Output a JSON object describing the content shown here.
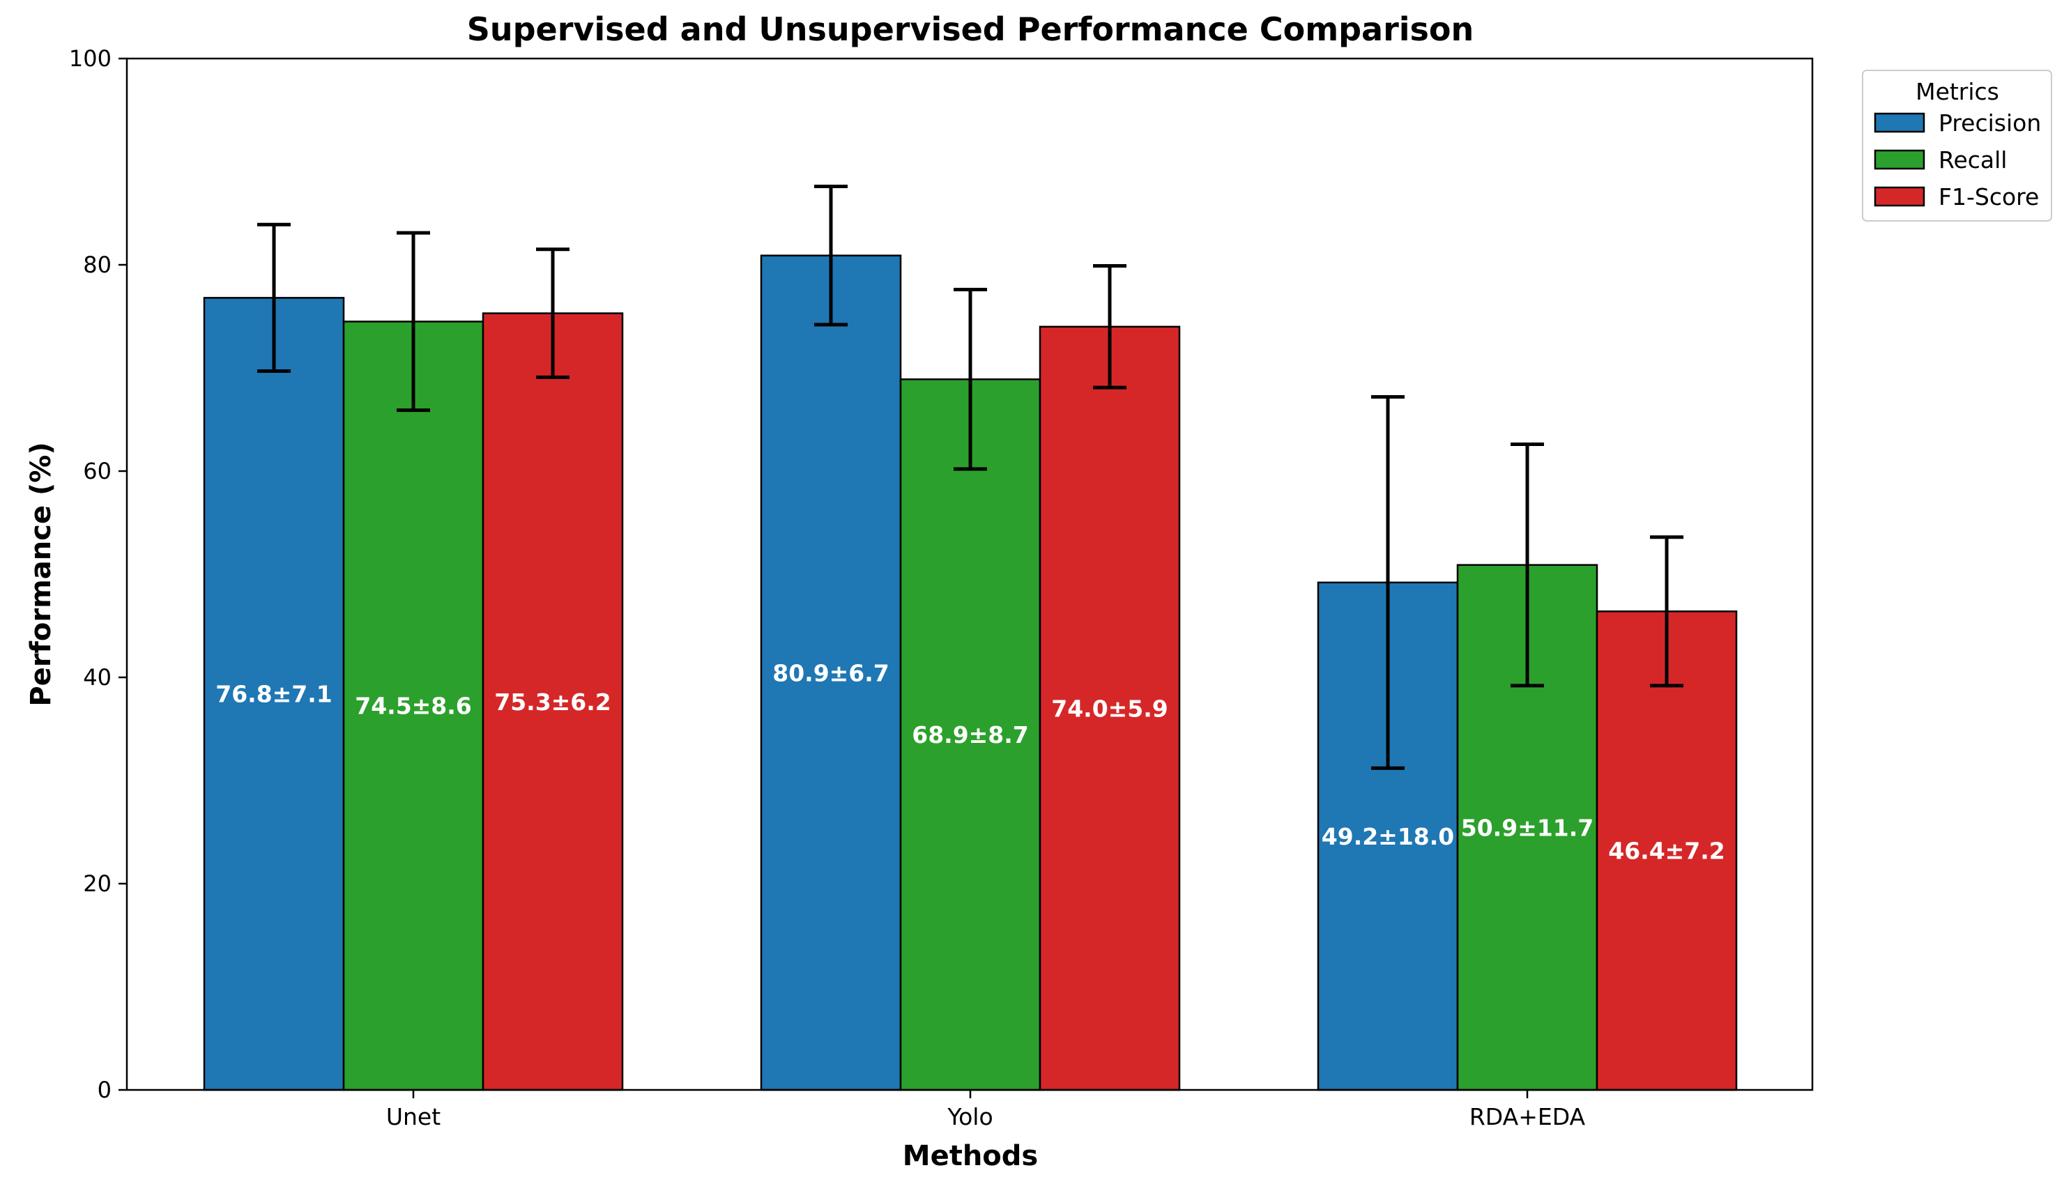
{
  "chart_data": {
    "type": "bar",
    "title": "Supervised and Unsupervised Performance Comparison",
    "xlabel": "Methods",
    "ylabel": "Performance (%)",
    "categories": [
      "Unet",
      "Yolo",
      "RDA+EDA"
    ],
    "ylim": [
      0,
      100
    ],
    "yticks": [
      0,
      20,
      40,
      60,
      80,
      100
    ],
    "grid": false,
    "legend": {
      "title": "Metrics",
      "placement": "outside-top-right"
    },
    "series": [
      {
        "name": "Precision",
        "color": "#1f77b4",
        "values": [
          76.8,
          80.9,
          49.2
        ],
        "errors": [
          7.1,
          6.7,
          18.0
        ],
        "labels": [
          "76.8±7.1",
          "80.9±6.7",
          "49.2±18.0"
        ]
      },
      {
        "name": "Recall",
        "color": "#2ca02c",
        "values": [
          74.5,
          68.9,
          50.9
        ],
        "errors": [
          8.6,
          8.7,
          11.7
        ],
        "labels": [
          "74.5±8.6",
          "68.9±8.7",
          "50.9±11.7"
        ]
      },
      {
        "name": "F1-Score",
        "color": "#d62728",
        "values": [
          75.3,
          74.0,
          46.4
        ],
        "errors": [
          6.2,
          5.9,
          7.2
        ],
        "labels": [
          "75.3±6.2",
          "74.0±5.9",
          "46.4±7.2"
        ]
      }
    ]
  }
}
